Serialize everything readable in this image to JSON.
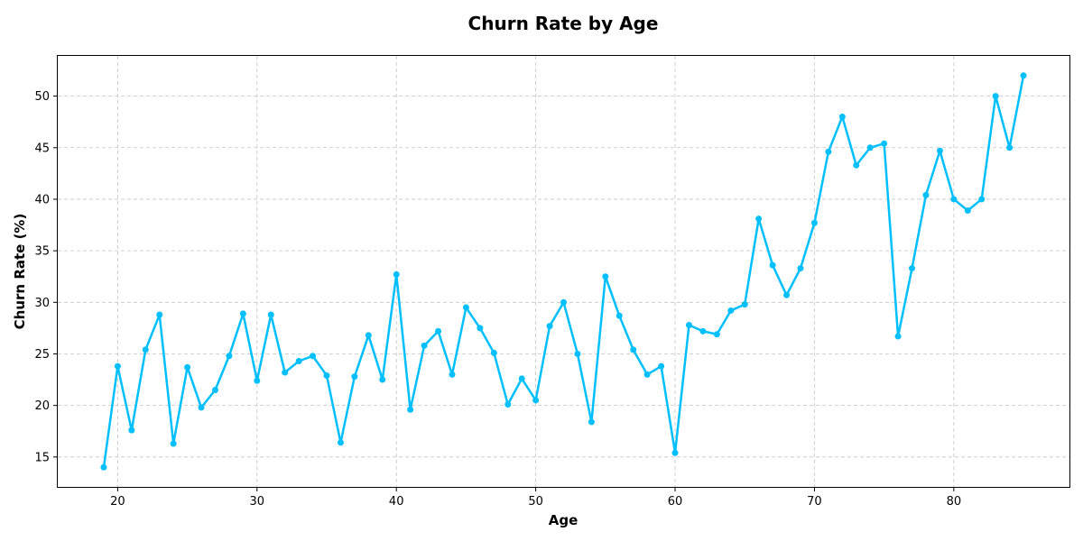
{
  "chart_data": {
    "type": "line",
    "title": "Churn Rate by Age",
    "xlabel": "Age",
    "ylabel": "Churn Rate (%)",
    "xlim": [
      15.7,
      88.3
    ],
    "ylim": [
      12.1,
      53.9
    ],
    "xticks": [
      20,
      30,
      40,
      50,
      60,
      70,
      80
    ],
    "yticks": [
      15,
      20,
      25,
      30,
      35,
      40,
      45,
      50
    ],
    "grid": true,
    "line_color": "#00BFFF",
    "series": [
      {
        "x": [
          19,
          20,
          21,
          22,
          23,
          24,
          25,
          26,
          27,
          28,
          29,
          30,
          31,
          32,
          33,
          34,
          35,
          36,
          37,
          38,
          39,
          40,
          41,
          42,
          43,
          44,
          45,
          46,
          47,
          48,
          49,
          50,
          51,
          52,
          53,
          54,
          55,
          56,
          57,
          58,
          59,
          60,
          61,
          62,
          63,
          64,
          65,
          66,
          67,
          68,
          69,
          70,
          71,
          72,
          73,
          74,
          75,
          76,
          77,
          78,
          79,
          80,
          81,
          82,
          83,
          84,
          85
        ],
        "values": [
          14.0,
          23.8,
          17.6,
          25.4,
          28.8,
          16.3,
          23.7,
          19.8,
          21.5,
          24.8,
          28.9,
          22.4,
          28.8,
          23.2,
          24.3,
          24.8,
          22.9,
          16.4,
          22.8,
          26.8,
          22.5,
          32.7,
          19.6,
          25.8,
          27.2,
          23.0,
          29.5,
          27.5,
          25.1,
          20.1,
          22.6,
          20.5,
          27.7,
          30.0,
          25.0,
          18.4,
          32.5,
          28.7,
          25.4,
          23.0,
          23.8,
          15.4,
          27.8,
          27.2,
          26.9,
          29.2,
          29.8,
          38.1,
          33.6,
          30.7,
          33.3,
          37.7,
          44.6,
          48.0,
          43.3,
          45.0,
          45.4,
          26.7,
          33.3,
          40.4,
          44.7,
          40.0,
          38.9,
          40.0,
          50.0,
          45.0,
          52.0
        ]
      }
    ]
  }
}
